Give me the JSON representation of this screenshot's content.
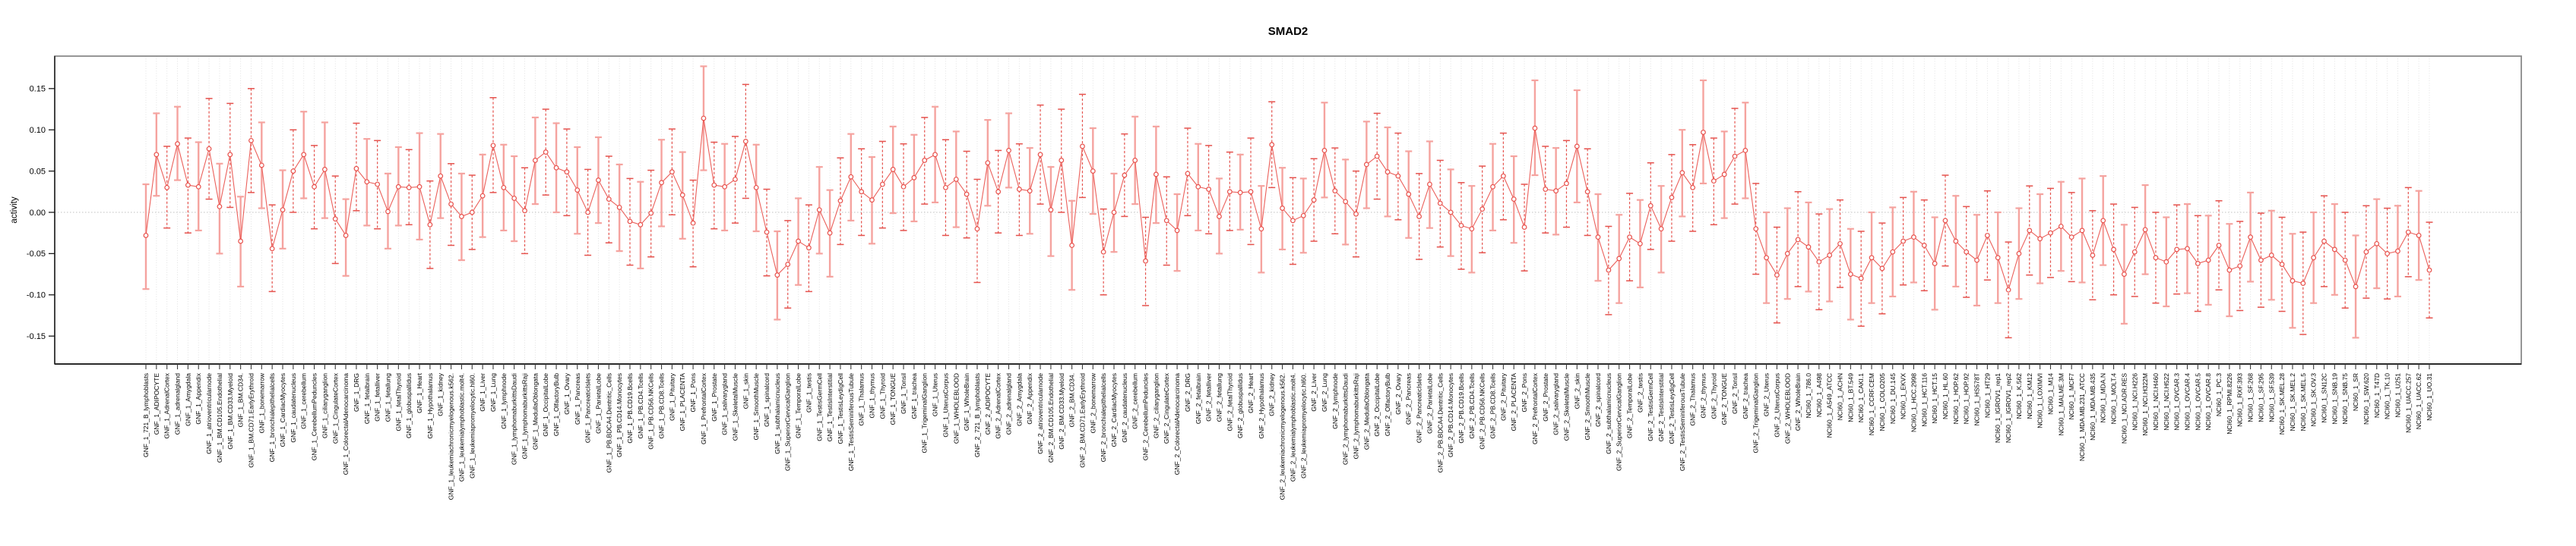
{
  "chart_data": {
    "type": "line",
    "title": "SMAD2",
    "xlabel": "",
    "ylabel": "activity",
    "ylim": [
      -0.175,
      0.19
    ],
    "yticks": [
      0.15,
      0.1,
      0.05,
      0.0,
      -0.05,
      -0.1,
      -0.15
    ],
    "ytick_labels": [
      "0.15",
      "0.10",
      "0.05",
      "0.00",
      "-0.05",
      "-0.10",
      "-0.15"
    ],
    "zero_reference_line": 0.0,
    "grid": "vertical-dotted-per-category",
    "legend": "none",
    "marker": "open-circle",
    "colors": {
      "series_line": "#EA5752",
      "marker_stroke": "#E8514C",
      "errorbar_solid": "#F5A39F",
      "errorbar_dashed": "#E5524D",
      "gridline": "#DEDEDE",
      "zero_line": "#C0C0C0",
      "box": "#8A8A8A",
      "axis": "#1A1A1A"
    },
    "groups": [
      {
        "prefix": "GNF_1_",
        "tissues_ref": "gnf_tissues"
      },
      {
        "prefix": "GNF_2_",
        "tissues_ref": "gnf_tissues"
      },
      {
        "prefix": "NCI60_1_",
        "tissues_ref": "nci60_lines"
      }
    ],
    "gnf_tissues": [
      "721_B_lymphoblasts",
      "ADIPOCYTE",
      "AdrenalCortex",
      "adrenalgland",
      "Amygdala",
      "Appendix",
      "atrioventricularnode",
      "BM.CD105.Endothelial",
      "BM.CD33.Myeloid",
      "BM.CD34.",
      "BM.CD71.EarlyErythroid",
      "bonemarrow",
      "bronchialepithelialcells",
      "CardiacMyocytes",
      "caudatenucleus",
      "cerebellum",
      "CerebellumPeduncles",
      "ciliaryganglion",
      "CingulateCortex",
      "ColorectalAdenocarcinoma",
      "DRG",
      "fetalbrain",
      "fetalliver",
      "fetallung",
      "fetalThyroid",
      "globuspallidus",
      "Heart",
      "Hypothalamus",
      "kidney",
      "leukemiachronicmyelogenous.k562.",
      "leukemialymphoblastic.molt4.",
      "leukemiapromyelocytic.hl60.",
      "Liver",
      "Lung",
      "lymphnode",
      "lymphomaburkittsDaudi",
      "lymphomaburkittsRaji",
      "MedullaOblongata",
      "OccipitalLobe",
      "OlfactoryBulb",
      "Ovary",
      "Pancreas",
      "PancreaticIslets",
      "ParietalLobe",
      "PB.BDCA4.Dentritic_Cells",
      "PB.CD14.Monocytes",
      "PB.CD19.Bcells",
      "PB.CD4.Tcells",
      "PB.CD56.NKCells",
      "PB.CD8.Tcells",
      "Pituitary",
      "PLACENTA",
      "Pons",
      "PrefrontalCortex",
      "Prostate",
      "salivarygland",
      "SkeletalMuscle",
      "skin",
      "SmoothMuscle",
      "spinalcord",
      "subthalamicnucleus",
      "SuperiorCervicalGanglion",
      "TemporalLobe",
      "testis",
      "TestisGermCell",
      "TestisInterstitial",
      "TestisLeydigCell",
      "TestisSeminiferousTubule",
      "Thalamus",
      "thymus",
      "Thyroid",
      "TONGUE",
      "Tonsil",
      "trachea",
      "TrigeminalGanglion",
      "Uterus",
      "UterusCorpus",
      "WHOLEBLOOD",
      "WholeBrain"
    ],
    "nci60_lines": [
      "786.0",
      "A498",
      "A549_ATCC",
      "ACHN",
      "BT.549",
      "CAKI.1",
      "CCRF.CEM",
      "COLO205",
      "DU.145",
      "EKVX",
      "HCC.2998",
      "HCT.116",
      "HCT.15",
      "HL.60",
      "HOP.62",
      "HOP.92",
      "HS578T",
      "HT29",
      "IGROV1_rep1",
      "IGROV1_rep2",
      "K.562",
      "KM12",
      "LOXIMVI",
      "M14",
      "MALME.3M",
      "MCF7",
      "MDA.MB.231_ATCC",
      "MDA.MB.435",
      "MDA.N",
      "MOLT.4",
      "NCI.ADR.RES",
      "NCI.H226",
      "NCI.H322M",
      "NCI.H460",
      "NCI.H522",
      "OVCAR.3",
      "OVCAR.4",
      "OVCAR.5",
      "OVCAR.8",
      "PC.3",
      "RPMI.8226",
      "RXF.393",
      "SF.268",
      "SF.295",
      "SF.539",
      "SK.MEL.28",
      "SK.MEL.2",
      "SK.MEL.5",
      "SK.OV.3",
      "SN12C",
      "SNB.19",
      "SNB.75",
      "SR",
      "SW.620",
      "T47D",
      "TK.10",
      "U251",
      "UACC.257",
      "UACC.62",
      "UO.31"
    ],
    "points_format": [
      "value",
      "ci_low",
      "ci_high",
      "bar_style(0=solid,1=dashed)"
    ],
    "points": [
      [
        -0.028,
        -0.093,
        0.034,
        0
      ],
      [
        0.07,
        0.02,
        0.12,
        0
      ],
      [
        0.03,
        -0.019,
        0.08,
        1
      ],
      [
        0.083,
        0.039,
        0.128,
        0
      ],
      [
        0.033,
        -0.025,
        0.09,
        1
      ],
      [
        0.031,
        -0.022,
        0.085,
        0
      ],
      [
        0.077,
        0.016,
        0.138,
        1
      ],
      [
        0.007,
        -0.05,
        0.059,
        0
      ],
      [
        0.07,
        0.006,
        0.132,
        1
      ],
      [
        -0.035,
        -0.09,
        0.019,
        0
      ],
      [
        0.087,
        0.024,
        0.15,
        1
      ],
      [
        0.057,
        0.005,
        0.109,
        0
      ],
      [
        -0.044,
        -0.096,
        0.009,
        1
      ],
      [
        0.003,
        -0.044,
        0.051,
        0
      ],
      [
        0.05,
        0.0,
        0.1,
        1
      ],
      [
        0.07,
        0.017,
        0.122,
        0
      ],
      [
        0.031,
        -0.02,
        0.081,
        1
      ],
      [
        0.052,
        -0.007,
        0.109,
        0
      ],
      [
        -0.008,
        -0.062,
        0.044,
        1
      ],
      [
        -0.028,
        -0.077,
        0.016,
        0
      ],
      [
        0.053,
        0.002,
        0.108,
        1
      ],
      [
        0.037,
        -0.016,
        0.089,
        0
      ],
      [
        0.034,
        -0.02,
        0.087,
        1
      ],
      [
        0.001,
        -0.044,
        0.047,
        0
      ],
      [
        0.031,
        -0.016,
        0.079,
        0
      ],
      [
        0.03,
        -0.015,
        0.076,
        1
      ],
      [
        0.031,
        -0.033,
        0.096,
        0
      ],
      [
        -0.015,
        -0.068,
        0.038,
        1
      ],
      [
        0.044,
        -0.007,
        0.095,
        0
      ],
      [
        0.01,
        -0.04,
        0.059,
        1
      ],
      [
        -0.005,
        -0.058,
        0.047,
        0
      ],
      [
        0.0,
        -0.045,
        0.045,
        1
      ],
      [
        0.02,
        -0.03,
        0.07,
        0
      ],
      [
        0.081,
        0.024,
        0.139,
        1
      ],
      [
        0.03,
        -0.022,
        0.082,
        0
      ],
      [
        0.017,
        -0.035,
        0.068,
        0
      ],
      [
        0.002,
        -0.05,
        0.054,
        1
      ],
      [
        0.063,
        0.01,
        0.115,
        0
      ],
      [
        0.073,
        0.021,
        0.125,
        1
      ],
      [
        0.054,
        0.0,
        0.108,
        0
      ],
      [
        0.049,
        -0.004,
        0.101,
        1
      ],
      [
        0.027,
        -0.026,
        0.079,
        0
      ],
      [
        0.0,
        -0.052,
        0.052,
        1
      ],
      [
        0.039,
        -0.013,
        0.091,
        0
      ],
      [
        0.016,
        -0.037,
        0.068,
        1
      ],
      [
        0.006,
        -0.047,
        0.058,
        0
      ],
      [
        -0.011,
        -0.064,
        0.041,
        1
      ],
      [
        -0.015,
        -0.068,
        0.037,
        0
      ],
      [
        -0.001,
        -0.054,
        0.051,
        1
      ],
      [
        0.036,
        -0.017,
        0.088,
        0
      ],
      [
        0.049,
        -0.003,
        0.101,
        1
      ],
      [
        0.021,
        -0.032,
        0.073,
        0
      ],
      [
        -0.013,
        -0.066,
        0.039,
        1
      ],
      [
        0.114,
        0.051,
        0.177,
        0
      ],
      [
        0.033,
        -0.02,
        0.085,
        1
      ],
      [
        0.031,
        -0.022,
        0.083,
        0
      ],
      [
        0.04,
        -0.013,
        0.092,
        1
      ],
      [
        0.086,
        0.017,
        0.155,
        1
      ],
      [
        0.03,
        -0.023,
        0.082,
        0
      ],
      [
        -0.024,
        -0.077,
        0.028,
        1
      ],
      [
        -0.076,
        -0.13,
        -0.023,
        0
      ],
      [
        -0.063,
        -0.116,
        -0.01,
        1
      ],
      [
        -0.035,
        -0.088,
        0.017,
        0
      ],
      [
        -0.043,
        -0.096,
        0.009,
        1
      ],
      [
        0.003,
        -0.05,
        0.055,
        0
      ],
      [
        -0.025,
        -0.078,
        0.027,
        0
      ],
      [
        0.014,
        -0.039,
        0.066,
        1
      ],
      [
        0.043,
        -0.01,
        0.095,
        0
      ],
      [
        0.025,
        -0.028,
        0.077,
        1
      ],
      [
        0.015,
        -0.038,
        0.067,
        0
      ],
      [
        0.034,
        -0.019,
        0.086,
        1
      ],
      [
        0.052,
        -0.001,
        0.104,
        0
      ],
      [
        0.031,
        -0.022,
        0.083,
        1
      ],
      [
        0.042,
        -0.011,
        0.094,
        0
      ],
      [
        0.063,
        0.01,
        0.115,
        1
      ],
      [
        0.07,
        0.012,
        0.128,
        0
      ],
      [
        0.03,
        -0.028,
        0.088,
        1
      ],
      [
        0.04,
        -0.018,
        0.098,
        0
      ],
      [
        0.022,
        -0.031,
        0.074,
        1
      ],
      [
        -0.02,
        -0.085,
        0.04,
        1
      ],
      [
        0.06,
        0.008,
        0.112,
        0
      ],
      [
        0.025,
        -0.025,
        0.075,
        1
      ],
      [
        0.075,
        0.03,
        0.12,
        0
      ],
      [
        0.028,
        -0.028,
        0.083,
        1
      ],
      [
        0.026,
        -0.026,
        0.078,
        0
      ],
      [
        0.07,
        0.01,
        0.13,
        1
      ],
      [
        0.003,
        -0.053,
        0.055,
        0
      ],
      [
        0.063,
        0.0,
        0.125,
        1
      ],
      [
        -0.04,
        -0.094,
        0.014,
        0
      ],
      [
        0.08,
        0.018,
        0.143,
        1
      ],
      [
        0.05,
        -0.002,
        0.102,
        0
      ],
      [
        -0.048,
        -0.1,
        0.004,
        1
      ],
      [
        0.0,
        -0.048,
        0.047,
        0
      ],
      [
        0.045,
        -0.005,
        0.095,
        1
      ],
      [
        0.063,
        0.01,
        0.116,
        0
      ],
      [
        -0.059,
        -0.113,
        -0.006,
        1
      ],
      [
        0.046,
        -0.013,
        0.104,
        0
      ],
      [
        -0.01,
        -0.064,
        0.043,
        1
      ],
      [
        -0.022,
        -0.071,
        0.022,
        0
      ],
      [
        0.047,
        -0.004,
        0.102,
        1
      ],
      [
        0.031,
        -0.022,
        0.083,
        0
      ],
      [
        0.028,
        -0.026,
        0.081,
        1
      ],
      [
        -0.005,
        -0.05,
        0.041,
        0
      ],
      [
        0.025,
        -0.022,
        0.073,
        1
      ],
      [
        0.024,
        -0.021,
        0.07,
        0
      ],
      [
        0.025,
        -0.039,
        0.09,
        1
      ],
      [
        -0.02,
        -0.073,
        0.032,
        0
      ],
      [
        0.082,
        0.03,
        0.134,
        1
      ],
      [
        0.005,
        -0.045,
        0.054,
        0
      ],
      [
        -0.01,
        -0.063,
        0.042,
        1
      ],
      [
        -0.004,
        -0.049,
        0.041,
        0
      ],
      [
        0.015,
        -0.035,
        0.065,
        1
      ],
      [
        0.075,
        0.018,
        0.133,
        0
      ],
      [
        0.026,
        -0.026,
        0.078,
        1
      ],
      [
        0.013,
        -0.039,
        0.064,
        0
      ],
      [
        -0.002,
        -0.054,
        0.05,
        1
      ],
      [
        0.058,
        0.005,
        0.11,
        0
      ],
      [
        0.068,
        0.016,
        0.12,
        1
      ],
      [
        0.049,
        -0.005,
        0.103,
        0
      ],
      [
        0.044,
        -0.009,
        0.096,
        1
      ],
      [
        0.022,
        -0.031,
        0.074,
        0
      ],
      [
        -0.005,
        -0.057,
        0.047,
        1
      ],
      [
        0.034,
        -0.019,
        0.086,
        0
      ],
      [
        0.011,
        -0.042,
        0.063,
        1
      ],
      [
        0.0,
        -0.053,
        0.052,
        0
      ],
      [
        -0.016,
        -0.069,
        0.036,
        1
      ],
      [
        -0.02,
        -0.073,
        0.032,
        0
      ],
      [
        0.004,
        -0.049,
        0.056,
        1
      ],
      [
        0.031,
        -0.022,
        0.083,
        0
      ],
      [
        0.044,
        -0.009,
        0.096,
        1
      ],
      [
        0.016,
        -0.037,
        0.068,
        0
      ],
      [
        -0.018,
        -0.071,
        0.034,
        1
      ],
      [
        0.102,
        0.045,
        0.16,
        0
      ],
      [
        0.028,
        -0.025,
        0.08,
        1
      ],
      [
        0.026,
        -0.027,
        0.078,
        0
      ],
      [
        0.035,
        -0.018,
        0.087,
        1
      ],
      [
        0.08,
        0.012,
        0.148,
        0
      ],
      [
        0.025,
        -0.028,
        0.077,
        1
      ],
      [
        -0.03,
        -0.083,
        0.022,
        0
      ],
      [
        -0.07,
        -0.124,
        -0.017,
        1
      ],
      [
        -0.056,
        -0.11,
        -0.003,
        0
      ],
      [
        -0.03,
        -0.083,
        0.023,
        1
      ],
      [
        -0.038,
        -0.091,
        0.015,
        0
      ],
      [
        0.008,
        -0.045,
        0.06,
        1
      ],
      [
        -0.02,
        -0.073,
        0.032,
        0
      ],
      [
        0.018,
        -0.035,
        0.07,
        1
      ],
      [
        0.048,
        -0.005,
        0.1,
        0
      ],
      [
        0.03,
        -0.023,
        0.082,
        1
      ],
      [
        0.097,
        0.035,
        0.16,
        0
      ],
      [
        0.038,
        -0.015,
        0.09,
        1
      ],
      [
        0.046,
        -0.007,
        0.098,
        0
      ],
      [
        0.068,
        0.01,
        0.126,
        1
      ],
      [
        0.075,
        0.017,
        0.133,
        0
      ],
      [
        -0.02,
        -0.075,
        0.035,
        1
      ],
      [
        -0.055,
        -0.11,
        0.0,
        0
      ],
      [
        -0.076,
        -0.134,
        -0.018,
        1
      ],
      [
        -0.05,
        -0.105,
        0.005,
        0
      ],
      [
        -0.033,
        -0.09,
        0.025,
        1
      ],
      [
        -0.042,
        -0.096,
        0.012,
        0
      ],
      [
        -0.06,
        -0.118,
        -0.002,
        1
      ],
      [
        -0.052,
        -0.108,
        0.004,
        0
      ],
      [
        -0.038,
        -0.091,
        0.015,
        1
      ],
      [
        -0.075,
        -0.13,
        -0.02,
        0
      ],
      [
        -0.08,
        -0.138,
        -0.023,
        1
      ],
      [
        -0.055,
        -0.11,
        0.0,
        0
      ],
      [
        -0.068,
        -0.123,
        -0.013,
        1
      ],
      [
        -0.048,
        -0.102,
        0.006,
        0
      ],
      [
        -0.035,
        -0.088,
        0.018,
        1
      ],
      [
        -0.03,
        -0.085,
        0.025,
        0
      ],
      [
        -0.04,
        -0.095,
        0.015,
        1
      ],
      [
        -0.062,
        -0.118,
        -0.006,
        0
      ],
      [
        -0.01,
        -0.065,
        0.045,
        1
      ],
      [
        -0.035,
        -0.09,
        0.02,
        0
      ],
      [
        -0.048,
        -0.103,
        0.007,
        1
      ],
      [
        -0.058,
        -0.113,
        -0.003,
        0
      ],
      [
        -0.028,
        -0.082,
        0.026,
        1
      ],
      [
        -0.055,
        -0.11,
        0.0,
        0
      ],
      [
        -0.094,
        -0.152,
        -0.036,
        1
      ],
      [
        -0.05,
        -0.105,
        0.005,
        0
      ],
      [
        -0.022,
        -0.076,
        0.032,
        1
      ],
      [
        -0.032,
        -0.086,
        0.022,
        0
      ],
      [
        -0.025,
        -0.079,
        0.029,
        1
      ],
      [
        -0.017,
        -0.071,
        0.037,
        0
      ],
      [
        -0.03,
        -0.084,
        0.024,
        1
      ],
      [
        -0.022,
        -0.085,
        0.041,
        0
      ],
      [
        -0.052,
        -0.106,
        0.002,
        1
      ],
      [
        -0.01,
        -0.064,
        0.044,
        0
      ],
      [
        -0.045,
        -0.1,
        0.01,
        1
      ],
      [
        -0.075,
        -0.135,
        -0.015,
        0
      ],
      [
        -0.048,
        -0.102,
        0.006,
        1
      ],
      [
        -0.021,
        -0.075,
        0.033,
        0
      ],
      [
        -0.055,
        -0.11,
        0.0,
        1
      ],
      [
        -0.06,
        -0.114,
        -0.006,
        0
      ],
      [
        -0.045,
        -0.099,
        0.009,
        1
      ],
      [
        -0.044,
        -0.098,
        0.01,
        0
      ],
      [
        -0.062,
        -0.12,
        -0.004,
        1
      ],
      [
        -0.058,
        -0.112,
        -0.004,
        0
      ],
      [
        -0.04,
        -0.094,
        0.014,
        1
      ],
      [
        -0.07,
        -0.126,
        -0.014,
        0
      ],
      [
        -0.065,
        -0.119,
        -0.011,
        1
      ],
      [
        -0.03,
        -0.084,
        0.024,
        0
      ],
      [
        -0.058,
        -0.115,
        -0.001,
        1
      ],
      [
        -0.052,
        -0.106,
        0.002,
        0
      ],
      [
        -0.063,
        -0.12,
        -0.006,
        1
      ],
      [
        -0.083,
        -0.14,
        -0.026,
        0
      ],
      [
        -0.086,
        -0.148,
        -0.024,
        1
      ],
      [
        -0.055,
        -0.11,
        0.0,
        0
      ],
      [
        -0.035,
        -0.09,
        0.02,
        1
      ],
      [
        -0.045,
        -0.1,
        0.01,
        0
      ],
      [
        -0.058,
        -0.116,
        0.0,
        1
      ],
      [
        -0.09,
        -0.152,
        -0.028,
        0
      ],
      [
        -0.048,
        -0.104,
        0.008,
        1
      ],
      [
        -0.038,
        -0.092,
        0.016,
        0
      ],
      [
        -0.05,
        -0.105,
        0.005,
        1
      ],
      [
        -0.047,
        -0.102,
        0.008,
        0
      ],
      [
        -0.024,
        -0.078,
        0.03,
        1
      ],
      [
        -0.028,
        -0.082,
        0.026,
        0
      ],
      [
        -0.07,
        -0.128,
        -0.012,
        1
      ]
    ]
  }
}
